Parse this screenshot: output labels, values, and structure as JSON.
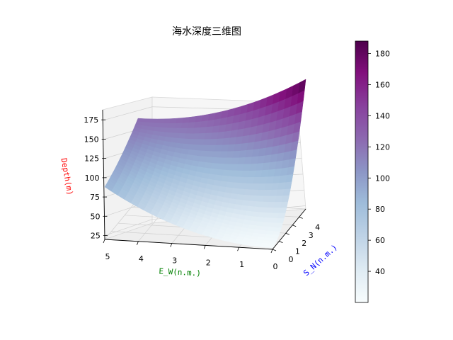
{
  "chart_data": {
    "type": "surface3d",
    "title": "海水深度三维图",
    "xlabel": "E_W(n.m.)",
    "ylabel": "S_N(n.m.)",
    "zlabel": "Depth(m)",
    "label_colors": {
      "x": "#008000",
      "y": "#0000ff",
      "z": "#ff0000"
    },
    "colormap": "BuPu",
    "x_ticks": [
      "5",
      "4",
      "3",
      "2",
      "1",
      "0"
    ],
    "y_ticks": [
      "0",
      "1",
      "2",
      "3",
      "4"
    ],
    "z_ticks": [
      "25",
      "50",
      "75",
      "100",
      "125",
      "150",
      "175"
    ],
    "xlim": [
      0,
      5
    ],
    "ylim": [
      0,
      5
    ],
    "zlim": [
      20,
      188
    ],
    "corners": {
      "x5_y0": 88,
      "x0_y0": 22,
      "x0_y5": 188
    },
    "colorbar": {
      "ticks": [
        "40",
        "60",
        "80",
        "100",
        "120",
        "140",
        "160",
        "180"
      ],
      "range": [
        20,
        188
      ]
    }
  }
}
